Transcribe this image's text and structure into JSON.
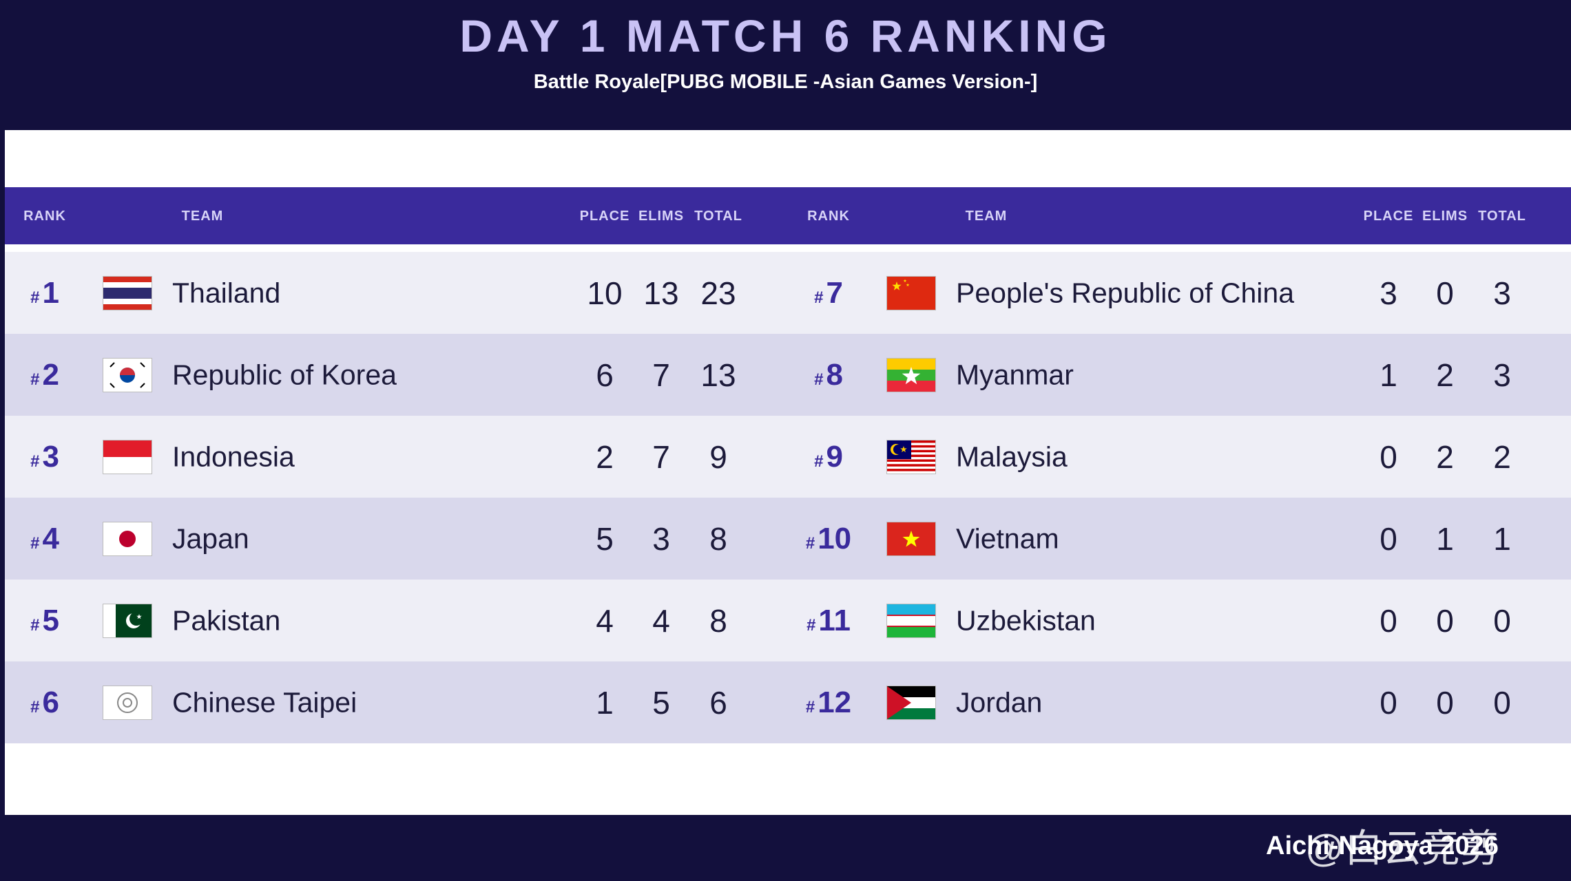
{
  "header": {
    "title": "DAY 1 MATCH 6 RANKING",
    "subtitle": "Battle Royale[PUBG MOBILE -Asian Games Version-]"
  },
  "table": {
    "columns": [
      "RANK",
      "TEAM",
      "PLACE",
      "ELIMS",
      "TOTAL"
    ],
    "rank_prefix": "#",
    "rows": [
      {
        "rank": 1,
        "team": "Thailand",
        "place": 10,
        "elims": 13,
        "total": 23
      },
      {
        "rank": 2,
        "team": "Republic of Korea",
        "place": 6,
        "elims": 7,
        "total": 13
      },
      {
        "rank": 3,
        "team": "Indonesia",
        "place": 2,
        "elims": 7,
        "total": 9
      },
      {
        "rank": 4,
        "team": "Japan",
        "place": 5,
        "elims": 3,
        "total": 8
      },
      {
        "rank": 5,
        "team": "Pakistan",
        "place": 4,
        "elims": 4,
        "total": 8
      },
      {
        "rank": 6,
        "team": "Chinese Taipei",
        "place": 1,
        "elims": 5,
        "total": 6
      },
      {
        "rank": 7,
        "team": "People's Republic of China",
        "place": 3,
        "elims": 0,
        "total": 3
      },
      {
        "rank": 8,
        "team": "Myanmar",
        "place": 1,
        "elims": 2,
        "total": 3
      },
      {
        "rank": 9,
        "team": "Malaysia",
        "place": 0,
        "elims": 2,
        "total": 2
      },
      {
        "rank": 10,
        "team": "Vietnam",
        "place": 0,
        "elims": 1,
        "total": 1
      },
      {
        "rank": 11,
        "team": "Uzbekistan",
        "place": 0,
        "elims": 0,
        "total": 0
      },
      {
        "rank": 12,
        "team": "Jordan",
        "place": 0,
        "elims": 0,
        "total": 0
      }
    ]
  },
  "footer": {
    "event": "Aichi-Nagoya 2026",
    "watermark": "@白云竞剪"
  }
}
